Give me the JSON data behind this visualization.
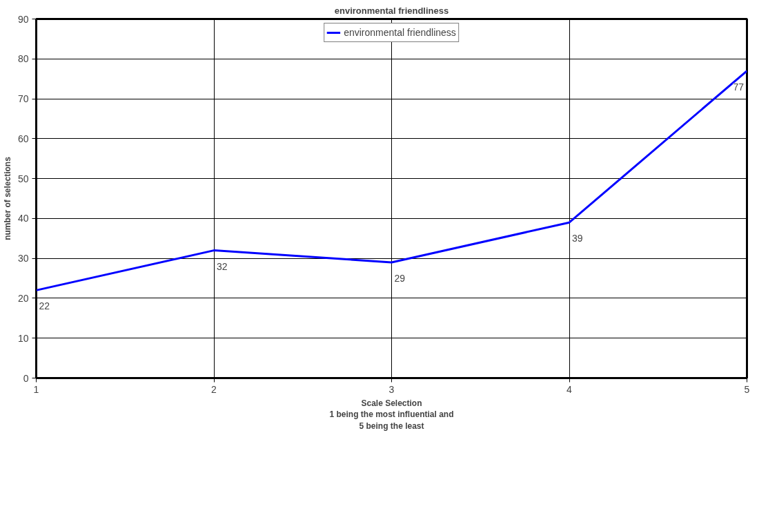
{
  "chart_data": {
    "type": "line",
    "title": "environmental friendliness",
    "xlabel": "Scale Selection\n1 being the most influential and\n5 being the least",
    "ylabel": "number of selections",
    "x": [
      1,
      2,
      3,
      4,
      5
    ],
    "series": [
      {
        "name": "environmental friendliness",
        "color": "#0000ff",
        "values": [
          22,
          32,
          29,
          39,
          77
        ]
      }
    ],
    "xlim": [
      1,
      5
    ],
    "xticks": [
      1,
      2,
      3,
      4,
      5
    ],
    "ylim": [
      0,
      90
    ],
    "yticks": [
      0,
      10,
      20,
      30,
      40,
      50,
      60,
      70,
      80,
      90
    ],
    "grid": true,
    "legend": "top",
    "data_labels": true,
    "marker": "none",
    "line_style": "solid"
  }
}
